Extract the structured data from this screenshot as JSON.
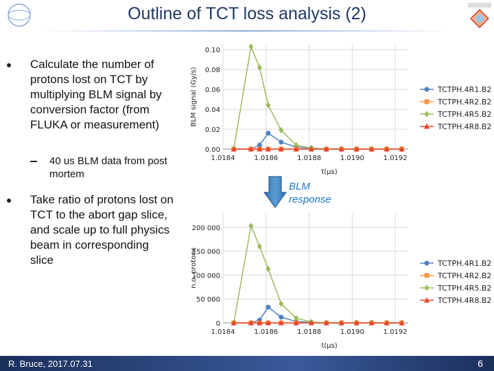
{
  "slide": {
    "title": "Outline of TCT loss analysis (2)",
    "bullets": [
      "Calculate the number of protons lost on TCT by multiplying BLM signal by conversion factor (from FLUKA or measurement)",
      "Take ratio of protons lost on TCT to the abort gap slice, and scale up to full physics beam in corresponding slice"
    ],
    "sub_bullet": "40 us BLM data from post mortem",
    "arrow_label": "BLM response",
    "footer": "R. Bruce, 2017.07.31",
    "page_number": "6"
  },
  "chart_data": [
    {
      "type": "line",
      "ylabel": "BLM signal (Gy/s)",
      "xlabel": "t(μs)",
      "x": [
        1.01845,
        1.01853,
        1.01857,
        1.01861,
        1.01867,
        1.01874,
        1.01881,
        1.01888,
        1.01895,
        1.01902,
        1.01909,
        1.01916,
        1.01923
      ],
      "xlim": [
        1.0184,
        1.01926
      ],
      "xticks": [
        1.0184,
        1.0186,
        1.0188,
        {
          "value": 1.019,
          "label": "1.0190"
        },
        1.0192
      ],
      "ylim": [
        0,
        0.105
      ],
      "yticks": [
        {
          "value": 0,
          "label": "0.00"
        },
        0.02,
        0.04,
        0.06,
        0.08,
        {
          "value": 0.1,
          "label": "0.10"
        }
      ],
      "grid": true,
      "legend": "right",
      "series": [
        {
          "name": "TCTPH.4R1.B2",
          "color": "#4f81bd",
          "marker": "circle",
          "values": [
            0,
            0,
            0.004,
            0.016,
            0.007,
            0.002,
            0.001,
            0,
            0,
            0,
            0,
            0,
            0
          ]
        },
        {
          "name": "TCTPH.4R2.B2",
          "color": "#f79646",
          "marker": "square",
          "values": [
            0,
            0,
            0,
            0,
            0,
            0,
            0,
            0,
            0,
            0,
            0,
            0,
            0
          ]
        },
        {
          "name": "TCTPH.4R5.B2",
          "color": "#9bbb59",
          "marker": "diamond",
          "values": [
            0,
            0.103,
            0.082,
            0.044,
            0.019,
            0.004,
            0.001,
            0,
            0,
            0,
            0,
            0,
            0
          ]
        },
        {
          "name": "TCTPH.4R8.B2",
          "color": "#e8452c",
          "marker": "triangle",
          "values": [
            0,
            0,
            0,
            0,
            0,
            0,
            0,
            0,
            0,
            0,
            0,
            0,
            0
          ]
        }
      ]
    },
    {
      "type": "line",
      "ylabel": "n.o. protons",
      "xlabel": "t(μs)",
      "x": [
        1.01845,
        1.01853,
        1.01857,
        1.01861,
        1.01867,
        1.01874,
        1.01881,
        1.01888,
        1.01895,
        1.01902,
        1.01909,
        1.01916,
        1.01923
      ],
      "xlim": [
        1.0184,
        1.01926
      ],
      "xticks": [
        1.0184,
        1.0186,
        1.0188,
        {
          "value": 1.019,
          "label": "1.0190"
        },
        1.0192
      ],
      "ylim": [
        0,
        230000
      ],
      "yticks": [
        0,
        {
          "value": 50000,
          "label": "50 000"
        },
        {
          "value": 100000,
          "label": "100 000"
        },
        {
          "value": 150000,
          "label": "150 000"
        },
        {
          "value": 200000,
          "label": "200 000"
        }
      ],
      "grid": true,
      "legend": "right",
      "series": [
        {
          "name": "TCTPH.4R1.B2",
          "color": "#4f81bd",
          "marker": "circle",
          "values": [
            0,
            0,
            6000,
            33000,
            12000,
            3000,
            1000,
            0,
            0,
            0,
            0,
            0,
            0
          ]
        },
        {
          "name": "TCTPH.4R2.B2",
          "color": "#f79646",
          "marker": "square",
          "values": [
            0,
            0,
            0,
            0,
            0,
            0,
            0,
            0,
            0,
            0,
            0,
            0,
            0
          ]
        },
        {
          "name": "TCTPH.4R5.B2",
          "color": "#9bbb59",
          "marker": "diamond",
          "values": [
            0,
            203000,
            160000,
            113000,
            40000,
            10000,
            2000,
            0,
            0,
            0,
            0,
            0,
            0
          ]
        },
        {
          "name": "TCTPH.4R8.B2",
          "color": "#e8452c",
          "marker": "triangle",
          "values": [
            0,
            0,
            0,
            0,
            0,
            0,
            0,
            0,
            0,
            0,
            0,
            0,
            0
          ]
        }
      ]
    }
  ]
}
